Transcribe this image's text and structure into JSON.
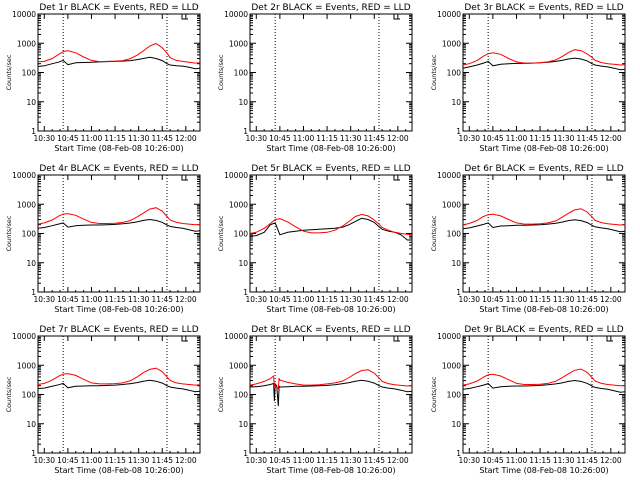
{
  "chart_data": {
    "type": "line",
    "y_scale": "log",
    "ylim": [
      1,
      10000
    ],
    "y_ticks": [
      "1",
      "10",
      "100",
      "1000",
      "10000"
    ],
    "x_ticks": [
      "10:30",
      "10:45",
      "11:00",
      "11:15",
      "11:30",
      "11:45",
      "12:00"
    ],
    "x_tick_minutes": [
      0,
      15,
      30,
      45,
      60,
      75,
      90
    ],
    "xlim_minutes": [
      -4,
      99
    ],
    "xlabel": "Start Time (08-Feb-08 10:26:00)",
    "ylabel": "Counts/sec",
    "vertical_dotted_lines_minutes": [
      12,
      78
    ],
    "series_colors": {
      "events": "#000000",
      "lld": "#ff0000"
    },
    "panels": [
      {
        "title": "Det 1r BLACK = Events, RED = LLD",
        "series": [
          {
            "legend": "Events",
            "x": [
              -4,
              0,
              5,
              9,
              12,
              15,
              20,
              25,
              30,
              35,
              40,
              45,
              50,
              55,
              59,
              63,
              67,
              71,
              75,
              78,
              80,
              84,
              88,
              92,
              96,
              99
            ],
            "y": [
              160,
              170,
              200,
              225,
              260,
              185,
              215,
              220,
              225,
              230,
              235,
              240,
              245,
              255,
              275,
              300,
              330,
              300,
              255,
              200,
              180,
              170,
              165,
              150,
              135,
              140
            ]
          },
          {
            "legend": "LLD",
            "x": [
              -4,
              0,
              5,
              9,
              12,
              15,
              20,
              25,
              30,
              35,
              40,
              45,
              50,
              55,
              59,
              63,
              67,
              71,
              75,
              78,
              80,
              84,
              88,
              92,
              96,
              99
            ],
            "y": [
              230,
              240,
              300,
              410,
              520,
              560,
              470,
              340,
              260,
              235,
              240,
              245,
              255,
              300,
              390,
              550,
              800,
              980,
              700,
              460,
              320,
              260,
              240,
              225,
              210,
              215
            ]
          }
        ]
      },
      {
        "title": "Det 2r BLACK = Events, RED = LLD",
        "series": []
      },
      {
        "title": "Det 3r BLACK = Events, RED = LLD",
        "series": [
          {
            "legend": "Events",
            "x": [
              -4,
              0,
              5,
              9,
              12,
              15,
              20,
              25,
              30,
              35,
              40,
              45,
              50,
              55,
              59,
              63,
              67,
              71,
              75,
              78,
              80,
              84,
              88,
              92,
              96,
              99
            ],
            "y": [
              140,
              155,
              180,
              210,
              240,
              170,
              190,
              200,
              205,
              205,
              210,
              215,
              225,
              240,
              260,
              290,
              310,
              290,
              250,
              200,
              180,
              165,
              155,
              140,
              125,
              130
            ]
          },
          {
            "legend": "LLD",
            "x": [
              -4,
              0,
              5,
              9,
              12,
              15,
              20,
              25,
              30,
              35,
              40,
              45,
              50,
              55,
              59,
              63,
              67,
              71,
              75,
              78,
              80,
              84,
              88,
              92,
              96,
              99
            ],
            "y": [
              180,
              200,
              260,
              360,
              440,
              470,
              420,
              300,
              230,
              210,
              210,
              215,
              230,
              270,
              350,
              480,
              600,
              560,
              430,
              330,
              260,
              220,
              200,
              190,
              180,
              185
            ]
          }
        ]
      },
      {
        "title": "Det 4r BLACK = Events, RED = LLD",
        "series": [
          {
            "legend": "Events",
            "x": [
              -4,
              0,
              5,
              9,
              12,
              15,
              20,
              25,
              30,
              35,
              40,
              45,
              50,
              55,
              59,
              63,
              67,
              71,
              75,
              78,
              80,
              84,
              88,
              92,
              96,
              99
            ],
            "y": [
              150,
              160,
              185,
              210,
              230,
              165,
              185,
              190,
              195,
              195,
              200,
              205,
              215,
              230,
              250,
              280,
              300,
              280,
              240,
              195,
              175,
              160,
              150,
              135,
              120,
              125
            ]
          },
          {
            "legend": "LLD",
            "x": [
              -4,
              0,
              5,
              9,
              12,
              15,
              20,
              25,
              30,
              35,
              40,
              45,
              50,
              55,
              59,
              63,
              67,
              71,
              75,
              78,
              80,
              84,
              88,
              92,
              96,
              99
            ],
            "y": [
              210,
              230,
              290,
              390,
              460,
              480,
              420,
              310,
              240,
              220,
              220,
              225,
              240,
              280,
              370,
              500,
              680,
              760,
              580,
              380,
              290,
              240,
              220,
              210,
              200,
              205
            ]
          }
        ]
      },
      {
        "title": "Det 5r BLACK = Events, RED = LLD",
        "series": [
          {
            "legend": "Events",
            "x": [
              -4,
              0,
              5,
              9,
              12,
              15,
              20,
              25,
              30,
              35,
              40,
              45,
              50,
              55,
              59,
              63,
              67,
              71,
              75,
              78,
              80,
              84,
              88,
              92,
              96,
              99
            ],
            "y": [
              80,
              85,
              110,
              200,
              230,
              90,
              110,
              120,
              130,
              135,
              140,
              145,
              150,
              165,
              200,
              260,
              330,
              300,
              240,
              170,
              140,
              120,
              110,
              90,
              60,
              60
            ]
          },
          {
            "legend": "LLD",
            "x": [
              -4,
              0,
              5,
              9,
              12,
              15,
              20,
              25,
              30,
              35,
              40,
              45,
              50,
              55,
              59,
              63,
              67,
              71,
              75,
              78,
              80,
              84,
              88,
              92,
              96,
              99
            ],
            "y": [
              100,
              110,
              150,
              220,
              300,
              320,
              250,
              170,
              120,
              105,
              105,
              110,
              130,
              180,
              260,
              380,
              450,
              400,
              290,
              210,
              160,
              130,
              110,
              100,
              95,
              90
            ]
          }
        ]
      },
      {
        "title": "Det 6r BLACK = Events, RED = LLD",
        "series": [
          {
            "legend": "Events",
            "x": [
              -4,
              0,
              5,
              9,
              12,
              15,
              20,
              25,
              30,
              35,
              40,
              45,
              50,
              55,
              59,
              63,
              67,
              71,
              75,
              78,
              80,
              84,
              88,
              92,
              96,
              99
            ],
            "y": [
              145,
              155,
              180,
              205,
              230,
              160,
              180,
              185,
              190,
              190,
              195,
              200,
              210,
              225,
              245,
              275,
              295,
              275,
              235,
              190,
              170,
              155,
              145,
              130,
              115,
              120
            ]
          },
          {
            "legend": "LLD",
            "x": [
              -4,
              0,
              5,
              9,
              12,
              15,
              20,
              25,
              30,
              35,
              40,
              45,
              50,
              55,
              59,
              63,
              67,
              71,
              75,
              78,
              80,
              84,
              88,
              92,
              96,
              99
            ],
            "y": [
              200,
              220,
              280,
              380,
              440,
              460,
              400,
              300,
              230,
              210,
              210,
              215,
              230,
              270,
              360,
              490,
              640,
              700,
              540,
              370,
              280,
              235,
              215,
              205,
              195,
              200
            ]
          }
        ]
      },
      {
        "title": "Det 7r BLACK = Events, RED = LLD",
        "series": [
          {
            "legend": "Events",
            "x": [
              -4,
              0,
              5,
              9,
              12,
              15,
              20,
              25,
              30,
              35,
              40,
              45,
              50,
              55,
              59,
              63,
              67,
              71,
              75,
              78,
              80,
              84,
              88,
              92,
              96,
              99
            ],
            "y": [
              160,
              165,
              190,
              215,
              240,
              170,
              190,
              195,
              200,
              200,
              205,
              210,
              220,
              235,
              255,
              285,
              305,
              285,
              245,
              200,
              180,
              165,
              155,
              140,
              125,
              130
            ]
          },
          {
            "legend": "LLD",
            "x": [
              -4,
              0,
              5,
              9,
              12,
              15,
              20,
              25,
              30,
              35,
              40,
              45,
              50,
              55,
              59,
              63,
              67,
              71,
              75,
              78,
              80,
              84,
              88,
              92,
              96,
              99
            ],
            "y": [
              220,
              240,
              310,
              420,
              500,
              520,
              450,
              330,
              250,
              230,
              230,
              235,
              250,
              300,
              400,
              560,
              720,
              800,
              600,
              400,
              300,
              250,
              230,
              220,
              210,
              215
            ]
          }
        ]
      },
      {
        "title": "Det 8r BLACK = Events, RED = LLD",
        "series": [
          {
            "legend": "Events",
            "x": [
              -4,
              0,
              5,
              9,
              11,
              11.5,
              12,
              13,
              14,
              14.5,
              15,
              20,
              25,
              30,
              35,
              40,
              45,
              50,
              55,
              59,
              63,
              67,
              71,
              75,
              78,
              80,
              84,
              88,
              92,
              96,
              99
            ],
            "y": [
              180,
              185,
              200,
              220,
              240,
              60,
              230,
              200,
              40,
              190,
              180,
              185,
              190,
              190,
              195,
              200,
              205,
              215,
              235,
              255,
              285,
              305,
              285,
              245,
              200,
              180,
              165,
              155,
              140,
              125,
              130
            ]
          },
          {
            "legend": "LLD",
            "x": [
              -4,
              0,
              5,
              9,
              11,
              11.5,
              12,
              14,
              14.5,
              15,
              20,
              25,
              30,
              35,
              40,
              45,
              50,
              55,
              59,
              63,
              67,
              71,
              75,
              78,
              80,
              84,
              88,
              92,
              96,
              99
            ],
            "y": [
              210,
              230,
              280,
              350,
              430,
              170,
              200,
              160,
              360,
              310,
              260,
              230,
              210,
              210,
              215,
              230,
              250,
              290,
              380,
              520,
              660,
              700,
              540,
              370,
              280,
              235,
              215,
              205,
              195,
              200
            ]
          }
        ]
      },
      {
        "title": "Det 9r BLACK = Events, RED = LLD",
        "series": [
          {
            "legend": "Events",
            "x": [
              -4,
              0,
              5,
              9,
              12,
              15,
              20,
              25,
              30,
              35,
              40,
              45,
              50,
              55,
              59,
              63,
              67,
              71,
              75,
              78,
              80,
              84,
              88,
              92,
              96,
              99
            ],
            "y": [
              150,
              160,
              185,
              210,
              235,
              165,
              185,
              190,
              195,
              195,
              200,
              205,
              215,
              230,
              250,
              280,
              300,
              280,
              240,
              195,
              175,
              160,
              150,
              135,
              120,
              125
            ]
          },
          {
            "legend": "LLD",
            "x": [
              -4,
              0,
              5,
              9,
              12,
              15,
              20,
              25,
              30,
              35,
              40,
              45,
              50,
              55,
              59,
              63,
              67,
              71,
              75,
              78,
              80,
              84,
              88,
              92,
              96,
              99
            ],
            "y": [
              210,
              230,
              290,
              390,
              470,
              490,
              430,
              320,
              240,
              220,
              220,
              225,
              240,
              285,
              375,
              510,
              670,
              740,
              570,
              380,
              290,
              240,
              220,
              210,
              200,
              205
            ]
          }
        ]
      }
    ]
  }
}
